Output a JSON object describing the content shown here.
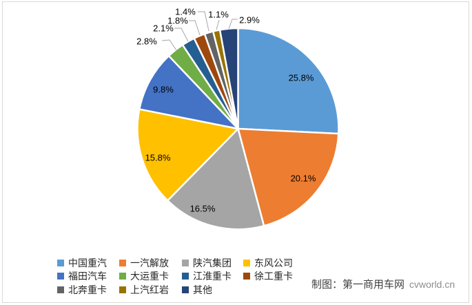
{
  "chart_data": {
    "type": "pie",
    "title": "",
    "categories": [
      "中国重汽",
      "一汽解放",
      "陕汽集团",
      "东风公司",
      "福田汽车",
      "大运重卡",
      "江淮重卡",
      "徐工重卡",
      "北奔重卡",
      "上汽红岩",
      "其他"
    ],
    "values": [
      25.8,
      20.1,
      16.5,
      15.8,
      9.8,
      2.8,
      2.1,
      1.8,
      1.4,
      1.1,
      2.9
    ],
    "value_labels": [
      "25.8%",
      "20.1%",
      "16.5%",
      "15.8%",
      "9.8%",
      "2.8%",
      "2.1%",
      "1.8%",
      "1.4%",
      "1.1%",
      "2.9%"
    ],
    "colors": [
      "#5B9BD5",
      "#ED7D31",
      "#A5A5A5",
      "#FFC000",
      "#4472C4",
      "#70AD47",
      "#255E91",
      "#9E480E",
      "#636363",
      "#997300",
      "#264478"
    ],
    "unit": "%",
    "start_angle": 0,
    "direction": "clockwise",
    "legend_position": "bottom-left",
    "label_color": "#000000",
    "leader_line_color": "#A6A6A6",
    "slice_border_color": "#FFFFFF"
  },
  "watermark": {
    "credit": "制图：第一商用车网",
    "site": "cvworld.cn"
  }
}
